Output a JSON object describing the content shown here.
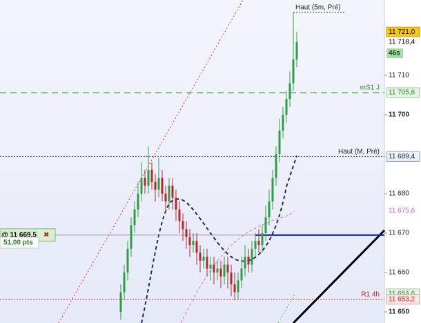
{
  "chart_data": {
    "type": "candlestick",
    "ylim": [
      11647.2,
      11729.1
    ],
    "yticks": [
      {
        "value": 11710,
        "label": "11 710"
      },
      {
        "value": 11700,
        "label": "11 700",
        "bold": true
      },
      {
        "value": 11680,
        "label": "11 680"
      },
      {
        "value": 11670,
        "label": "11 670"
      },
      {
        "value": 11660,
        "label": "11 660"
      },
      {
        "value": 11650,
        "label": "11 650",
        "bold": true
      }
    ],
    "up_color": "#2e9e45",
    "down_color": "#b3282d",
    "open": [
      11650,
      11655,
      11660,
      11666,
      11672,
      11676,
      11680,
      11684,
      11682,
      11686,
      11683,
      11681,
      11684,
      11680,
      11678,
      11682,
      11679,
      11676,
      11673,
      11671,
      11669,
      11667,
      11668,
      11665,
      11663,
      11664,
      11661,
      11662,
      11660,
      11661,
      11659,
      11662,
      11660,
      11657,
      11655,
      11658,
      11661,
      11664,
      11662,
      11666,
      11668,
      11667,
      11670,
      11674,
      11678,
      11684,
      11690,
      11696,
      11700,
      11704,
      11708,
      11714
    ],
    "high": [
      11657,
      11662,
      11668,
      11674,
      11678,
      11683,
      11688,
      11686,
      11692,
      11688,
      11685,
      11689,
      11686,
      11682,
      11684,
      11684,
      11681,
      11678,
      11675,
      11673,
      11671,
      11670,
      11670,
      11667,
      11666,
      11666,
      11664,
      11664,
      11663,
      11663,
      11664,
      11664,
      11662,
      11660,
      11660,
      11664,
      11667,
      11666,
      11668,
      11670,
      11671,
      11672,
      11677,
      11681,
      11686,
      11692,
      11699,
      11702,
      11706,
      11711,
      11726,
      11721
    ],
    "low": [
      11648,
      11653,
      11658,
      11664,
      11670,
      11674,
      11678,
      11680,
      11680,
      11681,
      11678,
      11679,
      11678,
      11675,
      11676,
      11676,
      11673,
      11670,
      11668,
      11666,
      11664,
      11665,
      11662,
      11660,
      11661,
      11659,
      11658,
      11657,
      11658,
      11656,
      11657,
      11656,
      11654,
      11653,
      11653,
      11656,
      11659,
      11660,
      11660,
      11664,
      11665,
      11665,
      11668,
      11672,
      11676,
      11682,
      11688,
      11694,
      11698,
      11702,
      11706,
      11712
    ],
    "close": [
      11655,
      11660,
      11666,
      11672,
      11676,
      11680,
      11684,
      11682,
      11686,
      11683,
      11681,
      11684,
      11680,
      11678,
      11682,
      11679,
      11676,
      11673,
      11671,
      11669,
      11667,
      11668,
      11665,
      11663,
      11664,
      11661,
      11662,
      11660,
      11661,
      11659,
      11662,
      11660,
      11657,
      11655,
      11658,
      11661,
      11664,
      11662,
      11666,
      11668,
      11667,
      11670,
      11674,
      11678,
      11684,
      11690,
      11696,
      11700,
      11704,
      11708,
      11714,
      11718.4
    ],
    "levels": [
      {
        "label": "Haut (5m, Pré)",
        "value": 11726,
        "color": "#222",
        "dash": "2,2",
        "short": true
      },
      {
        "label": "mS1 J",
        "value": 11705.6,
        "color": "#2a8a2a",
        "dash": "9,6"
      },
      {
        "label": "Haut (M, Pré)",
        "value": 11689.4,
        "color": "#222",
        "dash": "2,2"
      },
      {
        "label": "R1 4h",
        "value": 11653.2,
        "color": "#cc2222",
        "dash": "2,2"
      }
    ],
    "price_boxes": [
      {
        "label": "11 721,0",
        "value": 11721.0,
        "bg": "#f5c518",
        "fg": "#000",
        "border": "#c89c00"
      },
      {
        "label": "11 718,4",
        "value": 11718.4,
        "bg": "#ffffff",
        "fg": "#000",
        "border": "#ffffff"
      },
      {
        "label": "11 705,6",
        "value": 11705.6,
        "bg": "#e8f5e4",
        "fg": "#2a8a2a",
        "border": "#9bc89b"
      },
      {
        "label": "11 689,4",
        "value": 11689.4,
        "bg": "#eef2ff",
        "fg": "#222",
        "border": "#8aa0d0"
      },
      {
        "label": "11 675,6",
        "value": 11675.6,
        "bg": "#ffffff",
        "fg": "#d060c0",
        "border": "#ffffff"
      },
      {
        "label": "11 654,6",
        "value": 11654.6,
        "bg": "#e8f5e4",
        "fg": "#2a8a2a",
        "border": "#9bc89b"
      },
      {
        "label": "11 653,2",
        "value": 11653.2,
        "bg": "#fde8e8",
        "fg": "#cc2222",
        "border": "#e0a0a0"
      }
    ],
    "timer": "46s",
    "position": {
      "label": "@ 11 669,5",
      "value": 11669.5,
      "pts": "51,00 pts",
      "close": "✖"
    }
  }
}
